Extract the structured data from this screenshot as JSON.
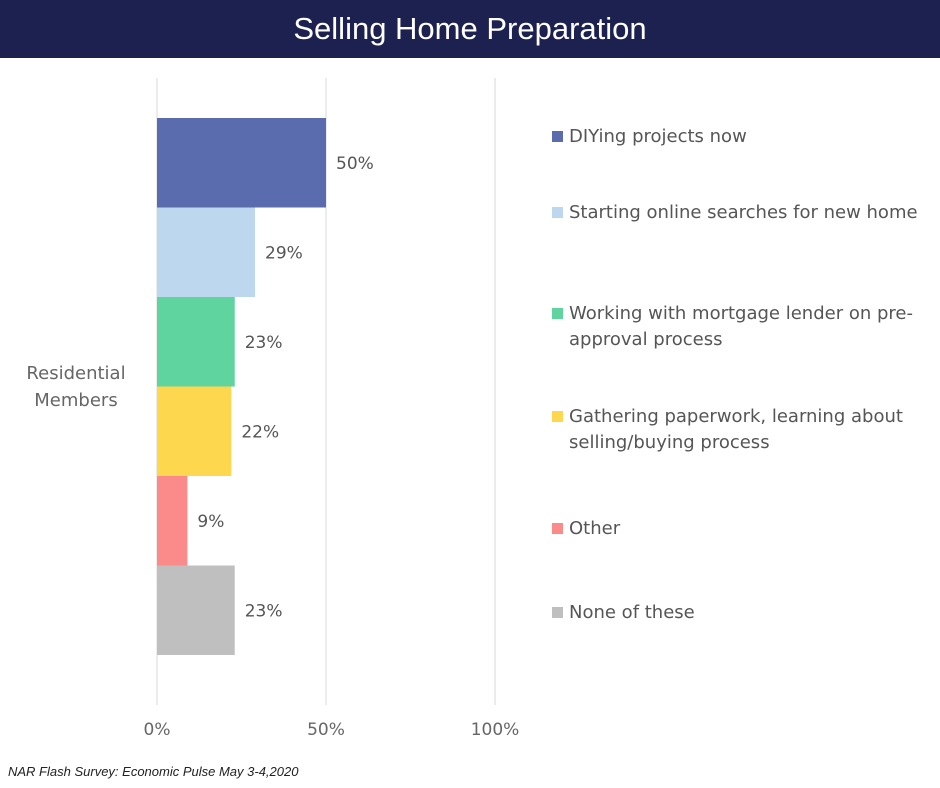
{
  "header": {
    "title": "Selling Home Preparation"
  },
  "chart_data": {
    "type": "bar",
    "orientation": "horizontal",
    "category": "Residential Members",
    "xlim": [
      0,
      100
    ],
    "x_ticks": [
      "0%",
      "50%",
      "100%"
    ],
    "series": [
      {
        "name": "DIYing projects now",
        "value": 50,
        "label": "50%",
        "color": "#5a6cae"
      },
      {
        "name": "Starting online searches for new home",
        "value": 29,
        "label": "29%",
        "color": "#bdd7ee"
      },
      {
        "name": "Working with mortgage lender on pre-approval process",
        "value": 23,
        "label": "23%",
        "color": "#5fd49e"
      },
      {
        "name": "Gathering paperwork, learning about selling/buying process",
        "value": 22,
        "label": "22%",
        "color": "#fdd74e"
      },
      {
        "name": "Other",
        "value": 9,
        "label": "9%",
        "color": "#fb8a8a"
      },
      {
        "name": "None of these",
        "value": 23,
        "label": "23%",
        "color": "#bfbfbf"
      }
    ],
    "grid": true,
    "legend_position": "right"
  },
  "footer": {
    "source": "NAR Flash Survey: Economic Pulse May 3-4,2020"
  }
}
